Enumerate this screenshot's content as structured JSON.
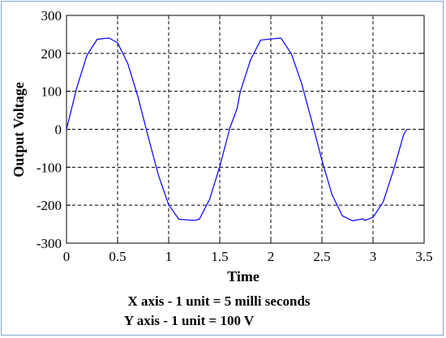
{
  "chart_data": {
    "type": "line",
    "title": "",
    "xlabel": "Time",
    "ylabel": "Output Voltage",
    "xlim": [
      0,
      3.5
    ],
    "ylim": [
      -300,
      300
    ],
    "x_ticks": [
      "0",
      "0.5",
      "1",
      "1.5",
      "2",
      "2.5",
      "3",
      "3.5"
    ],
    "y_ticks": [
      "300",
      "200",
      "100",
      "0",
      "-100",
      "-200",
      "-300"
    ],
    "grid": "dashed",
    "series": [
      {
        "color": "#0000ff",
        "x": [
          0,
          0.1,
          0.2,
          0.3,
          0.4,
          0.42,
          0.5,
          0.6,
          0.7,
          0.8,
          0.9,
          1.0,
          1.1,
          1.2,
          1.25,
          1.3,
          1.4,
          1.5,
          1.6,
          1.67,
          1.7,
          1.8,
          1.9,
          2.0,
          2.09,
          2.1,
          2.2,
          2.3,
          2.4,
          2.5,
          2.6,
          2.7,
          2.8,
          2.9,
          2.92,
          3.0,
          3.1,
          3.2,
          3.3,
          3.33
        ],
        "y": [
          0,
          109,
          195,
          237,
          240,
          240,
          228,
          173,
          85,
          -20,
          -121,
          -199,
          -237,
          -239,
          -240,
          -237,
          -185,
          -98,
          4,
          55,
          98,
          182,
          235,
          238,
          240,
          240,
          199,
          122,
          22,
          -82,
          -173,
          -228,
          -241,
          -236,
          -240,
          -232,
          -191,
          -108,
          -14,
          0
        ]
      }
    ],
    "annotations": [
      "X axis - 1 unit = 5 milli seconds",
      "Y axis - 1 unit = 100 V"
    ]
  }
}
